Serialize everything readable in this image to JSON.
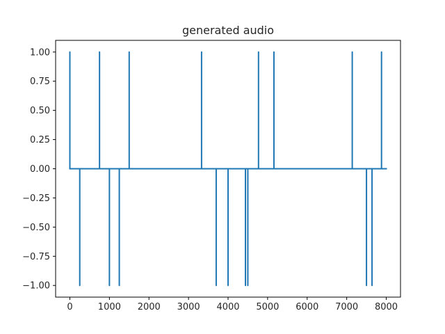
{
  "chart_data": {
    "type": "line",
    "title": "generated audio",
    "xlabel": "",
    "ylabel": "",
    "xlim": [
      -360,
      8360
    ],
    "ylim": [
      -1.1,
      1.1
    ],
    "xticks": [
      0,
      1000,
      2000,
      3000,
      4000,
      5000,
      6000,
      7000,
      8000
    ],
    "yticks": [
      -1.0,
      -0.75,
      -0.5,
      -0.25,
      0.0,
      0.25,
      0.5,
      0.75,
      1.0
    ],
    "xtick_labels": [
      "0",
      "1000",
      "2000",
      "3000",
      "4000",
      "5000",
      "6000",
      "7000",
      "8000"
    ],
    "ytick_labels": [
      "−1.00",
      "−0.75",
      "−0.50",
      "−0.25",
      "0.00",
      "0.25",
      "0.50",
      "0.75",
      "1.00"
    ],
    "grid": false,
    "series": [
      {
        "color": "#1f77b4",
        "x": [
          0,
          0,
          0,
          250,
          250,
          250,
          750,
          750,
          750,
          1000,
          1000,
          1000,
          1250,
          1250,
          1250,
          1500,
          1500,
          1500,
          3330,
          3330,
          3330,
          3700,
          3700,
          3700,
          4000,
          4000,
          4000,
          4440,
          4440,
          4440,
          4500,
          4500,
          4500,
          4770,
          4770,
          4770,
          5160,
          5160,
          5160,
          7140,
          7140,
          7140,
          7500,
          7500,
          7500,
          7640,
          7640,
          7640,
          7880,
          7880,
          7880,
          8000
        ],
        "y": [
          0,
          1,
          0,
          0,
          -1,
          0,
          0,
          1,
          0,
          0,
          -1,
          0,
          0,
          -1,
          0,
          0,
          1,
          0,
          0,
          1,
          0,
          0,
          -1,
          0,
          0,
          -1,
          0,
          0,
          -1,
          0,
          0,
          -1,
          0,
          0,
          1,
          0,
          0,
          1,
          0,
          0,
          1,
          0,
          0,
          -1,
          0,
          0,
          -1,
          0,
          0,
          1,
          0,
          0
        ]
      }
    ]
  }
}
